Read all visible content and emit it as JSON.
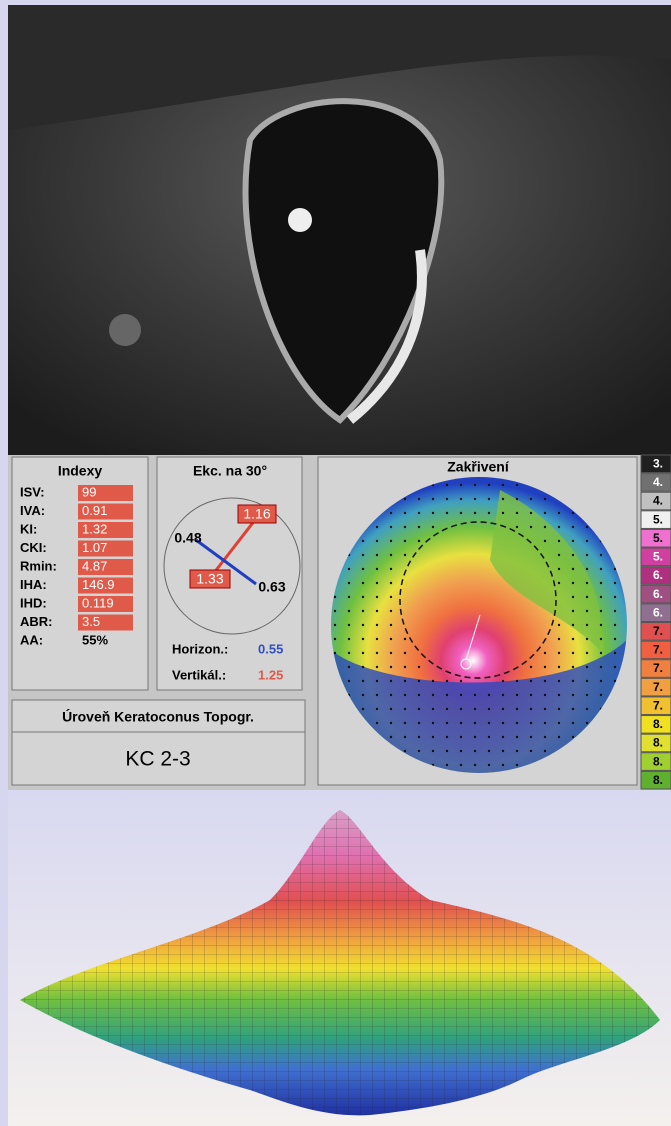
{
  "indices": {
    "title": "Indexy",
    "rows": [
      {
        "label": "ISV:",
        "value": "99"
      },
      {
        "label": "IVA:",
        "value": "0.91"
      },
      {
        "label": "KI:",
        "value": "1.32"
      },
      {
        "label": "CKI:",
        "value": "1.07"
      },
      {
        "label": "Rmin:",
        "value": "4.87"
      },
      {
        "label": "IHA:",
        "value": "146.9"
      },
      {
        "label": "IHD:",
        "value": "0.119"
      },
      {
        "label": "ABR:",
        "value": "3.5"
      },
      {
        "label": "AA:",
        "value": "55%"
      }
    ]
  },
  "eccentricity": {
    "title": "Ekc. na 30°",
    "upper": "1.16",
    "left": "0.48",
    "right": "0.63",
    "lower": "1.33",
    "horizontal_label": "Horizon.:",
    "horizontal_value": "0.55",
    "vertical_label": "Vertikál.:",
    "vertical_value": "1.25"
  },
  "keratoconus": {
    "title": "Úroveň Keratoconus Topogr.",
    "value": "KC 2-3"
  },
  "curvature": {
    "title": "Zakřivení"
  },
  "scale": [
    {
      "label": "3.",
      "color": "#202020"
    },
    {
      "label": "4.",
      "color": "#707070"
    },
    {
      "label": "4.",
      "color": "#c0c0c0"
    },
    {
      "label": "5.",
      "color": "#f0f0f0"
    },
    {
      "label": "5.",
      "color": "#f070d0"
    },
    {
      "label": "5.",
      "color": "#d040a0"
    },
    {
      "label": "6.",
      "color": "#b03080"
    },
    {
      "label": "6.",
      "color": "#a05080"
    },
    {
      "label": "6.",
      "color": "#907090"
    },
    {
      "label": "7.",
      "color": "#e05050"
    },
    {
      "label": "7.",
      "color": "#f06040"
    },
    {
      "label": "7.",
      "color": "#f08040"
    },
    {
      "label": "7.",
      "color": "#f0a040"
    },
    {
      "label": "7.",
      "color": "#f0c030"
    },
    {
      "label": "8.",
      "color": "#f0e020"
    },
    {
      "label": "8.",
      "color": "#e0e030"
    },
    {
      "label": "8.",
      "color": "#a0d030"
    },
    {
      "label": "8.",
      "color": "#60b030"
    }
  ]
}
